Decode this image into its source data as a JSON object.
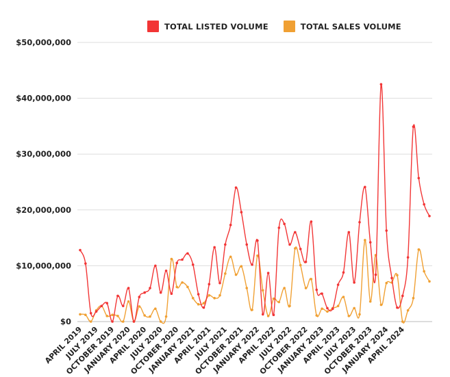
{
  "chart_data": {
    "type": "line",
    "title": "",
    "xlabel": "",
    "ylabel": "",
    "ylim": [
      0,
      50000000
    ],
    "yticks": [
      {
        "value": 0,
        "label": "$0"
      },
      {
        "value": 10000000,
        "label": "$10,000,000"
      },
      {
        "value": 20000000,
        "label": "$20,000,000"
      },
      {
        "value": 30000000,
        "label": "$30,000,000"
      },
      {
        "value": 40000000,
        "label": "$40,000,000"
      },
      {
        "value": 50000000,
        "label": "$50,000,000"
      }
    ],
    "grid": true,
    "legend_position": "top",
    "x_start": "2019-04",
    "x_tick_labels": [
      "APRIL 2019",
      "JULY 2019",
      "OCTOBER 2019",
      "JANUARY 2020",
      "APRIL 2020",
      "JULY 2020",
      "OCTOBER 2020",
      "JANUARY 2021",
      "APRIL 2021",
      "JULY 2021",
      "OCTOBER 2021",
      "JANUARY 2022",
      "APRIL 2022",
      "JULY 2022",
      "OCTOBER 2022",
      "JANUARY 2023",
      "APRIL 2023",
      "JULY 2023",
      "OCTOBER 2023",
      "JANUARY 2024",
      "APRIL 2024"
    ],
    "series": [
      {
        "name": "TOTAL LISTED VOLUME",
        "color": "#f23535",
        "values": [
          12800000,
          10400000,
          1500000,
          1800000,
          2800000,
          3300000,
          0,
          4600000,
          2800000,
          6000000,
          0,
          4400000,
          5200000,
          6000000,
          10000000,
          5200000,
          9100000,
          5000000,
          10500000,
          11100000,
          12200000,
          10200000,
          4900000,
          2500000,
          6700000,
          13300000,
          6900000,
          13800000,
          17300000,
          24000000,
          19600000,
          13800000,
          10200000,
          14500000,
          1300000,
          8700000,
          1200000,
          16800000,
          17500000,
          13800000,
          16000000,
          13000000,
          10700000,
          17900000,
          5700000,
          5000000,
          2400000,
          2300000,
          6600000,
          8800000,
          16000000,
          7000000,
          17800000,
          24100000,
          14200000,
          8400000,
          42500000,
          16300000,
          7800000,
          2500000,
          4600000,
          11500000,
          34900000,
          25700000,
          21000000,
          18900000
        ]
      },
      {
        "name": "TOTAL SALES VOLUME",
        "color": "#f0a033",
        "values": [
          1300000,
          1200000,
          0,
          2000000,
          2800000,
          1000000,
          1200000,
          1000000,
          0,
          3600000,
          0,
          2700000,
          1100000,
          900000,
          2300000,
          0,
          900000,
          11200000,
          6200000,
          7000000,
          6200000,
          4200000,
          3100000,
          3300000,
          4700000,
          4200000,
          4700000,
          8600000,
          11600000,
          8400000,
          9900000,
          6000000,
          2100000,
          11800000,
          5600000,
          1000000,
          4100000,
          3500000,
          6000000,
          2800000,
          13100000,
          10100000,
          6000000,
          7600000,
          1100000,
          2300000,
          1800000,
          2400000,
          2800000,
          4400000,
          1000000,
          2400000,
          1300000,
          14600000,
          3600000,
          11900000,
          3000000,
          6900000,
          7000000,
          8300000,
          0,
          2000000,
          4200000,
          12900000,
          9000000,
          7200000
        ]
      }
    ]
  }
}
